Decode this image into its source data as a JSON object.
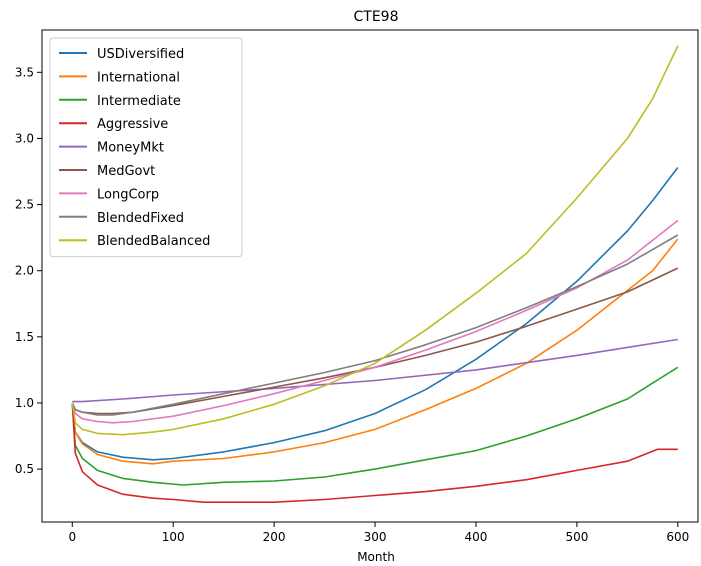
{
  "chart_data": {
    "type": "line",
    "title": "CTE98",
    "xlabel": "Month",
    "ylabel": "",
    "xlim": [
      -30,
      620
    ],
    "ylim": [
      0.1,
      3.82
    ],
    "xticks": [
      0,
      100,
      200,
      300,
      400,
      500,
      600
    ],
    "yticks": [
      0.5,
      1.0,
      1.5,
      2.0,
      2.5,
      3.0,
      3.5
    ],
    "legend": "top-left",
    "grid": false,
    "series": [
      {
        "name": "USDiversified",
        "color": "#1f77b4",
        "x": [
          0,
          3,
          10,
          25,
          50,
          80,
          100,
          150,
          200,
          250,
          300,
          350,
          400,
          450,
          500,
          550,
          575,
          600
        ],
        "y": [
          1.0,
          0.78,
          0.7,
          0.63,
          0.59,
          0.57,
          0.58,
          0.63,
          0.7,
          0.79,
          0.92,
          1.1,
          1.33,
          1.6,
          1.92,
          2.3,
          2.53,
          2.78
        ]
      },
      {
        "name": "International",
        "color": "#ff7f0e",
        "x": [
          0,
          3,
          10,
          25,
          50,
          80,
          100,
          150,
          200,
          250,
          300,
          350,
          400,
          450,
          500,
          550,
          575,
          600
        ],
        "y": [
          1.0,
          0.78,
          0.69,
          0.61,
          0.56,
          0.54,
          0.56,
          0.58,
          0.63,
          0.7,
          0.8,
          0.95,
          1.11,
          1.3,
          1.55,
          1.85,
          2.0,
          2.24
        ]
      },
      {
        "name": "Intermediate",
        "color": "#2ca02c",
        "x": [
          0,
          3,
          10,
          25,
          50,
          80,
          110,
          150,
          200,
          250,
          300,
          350,
          400,
          450,
          500,
          550,
          575,
          600
        ],
        "y": [
          1.0,
          0.68,
          0.58,
          0.49,
          0.43,
          0.4,
          0.38,
          0.4,
          0.41,
          0.44,
          0.5,
          0.57,
          0.64,
          0.75,
          0.88,
          1.03,
          1.15,
          1.27
        ]
      },
      {
        "name": "Aggressive",
        "color": "#d62728",
        "x": [
          0,
          3,
          10,
          25,
          50,
          80,
          100,
          130,
          200,
          250,
          300,
          350,
          400,
          450,
          500,
          550,
          580,
          600
        ],
        "y": [
          1.0,
          0.62,
          0.48,
          0.38,
          0.31,
          0.28,
          0.27,
          0.25,
          0.25,
          0.27,
          0.3,
          0.33,
          0.37,
          0.42,
          0.49,
          0.56,
          0.65,
          0.65
        ]
      },
      {
        "name": "MoneyMkt",
        "color": "#9467bd",
        "x": [
          0,
          10,
          50,
          100,
          200,
          300,
          400,
          500,
          600
        ],
        "y": [
          1.01,
          1.01,
          1.03,
          1.06,
          1.11,
          1.17,
          1.25,
          1.36,
          1.48
        ]
      },
      {
        "name": "MedGovt",
        "color": "#8c564b",
        "x": [
          0,
          3,
          10,
          25,
          40,
          60,
          100,
          150,
          200,
          250,
          300,
          350,
          400,
          450,
          500,
          550,
          600
        ],
        "y": [
          1.0,
          0.95,
          0.93,
          0.92,
          0.92,
          0.93,
          0.98,
          1.05,
          1.12,
          1.19,
          1.27,
          1.36,
          1.46,
          1.58,
          1.71,
          1.84,
          2.02
        ]
      },
      {
        "name": "LongCorp",
        "color": "#e377c2",
        "x": [
          0,
          3,
          10,
          25,
          40,
          60,
          100,
          150,
          200,
          250,
          300,
          350,
          400,
          450,
          500,
          550,
          600
        ],
        "y": [
          1.0,
          0.92,
          0.88,
          0.86,
          0.85,
          0.86,
          0.9,
          0.98,
          1.07,
          1.17,
          1.27,
          1.4,
          1.54,
          1.7,
          1.87,
          2.08,
          2.38
        ]
      },
      {
        "name": "BlendedFixed",
        "color": "#7f7f7f",
        "x": [
          0,
          3,
          10,
          25,
          40,
          60,
          100,
          150,
          200,
          250,
          300,
          350,
          400,
          450,
          500,
          550,
          600
        ],
        "y": [
          1.0,
          0.95,
          0.93,
          0.91,
          0.91,
          0.93,
          0.99,
          1.07,
          1.15,
          1.23,
          1.32,
          1.44,
          1.57,
          1.72,
          1.88,
          2.05,
          2.27
        ]
      },
      {
        "name": "BlendedBalanced",
        "color": "#bcbd22",
        "x": [
          0,
          3,
          10,
          25,
          50,
          80,
          100,
          150,
          200,
          250,
          300,
          350,
          400,
          450,
          500,
          550,
          575,
          600
        ],
        "y": [
          1.0,
          0.85,
          0.8,
          0.77,
          0.76,
          0.78,
          0.8,
          0.88,
          0.99,
          1.13,
          1.3,
          1.55,
          1.83,
          2.13,
          2.55,
          3.0,
          3.3,
          3.7
        ]
      }
    ]
  }
}
